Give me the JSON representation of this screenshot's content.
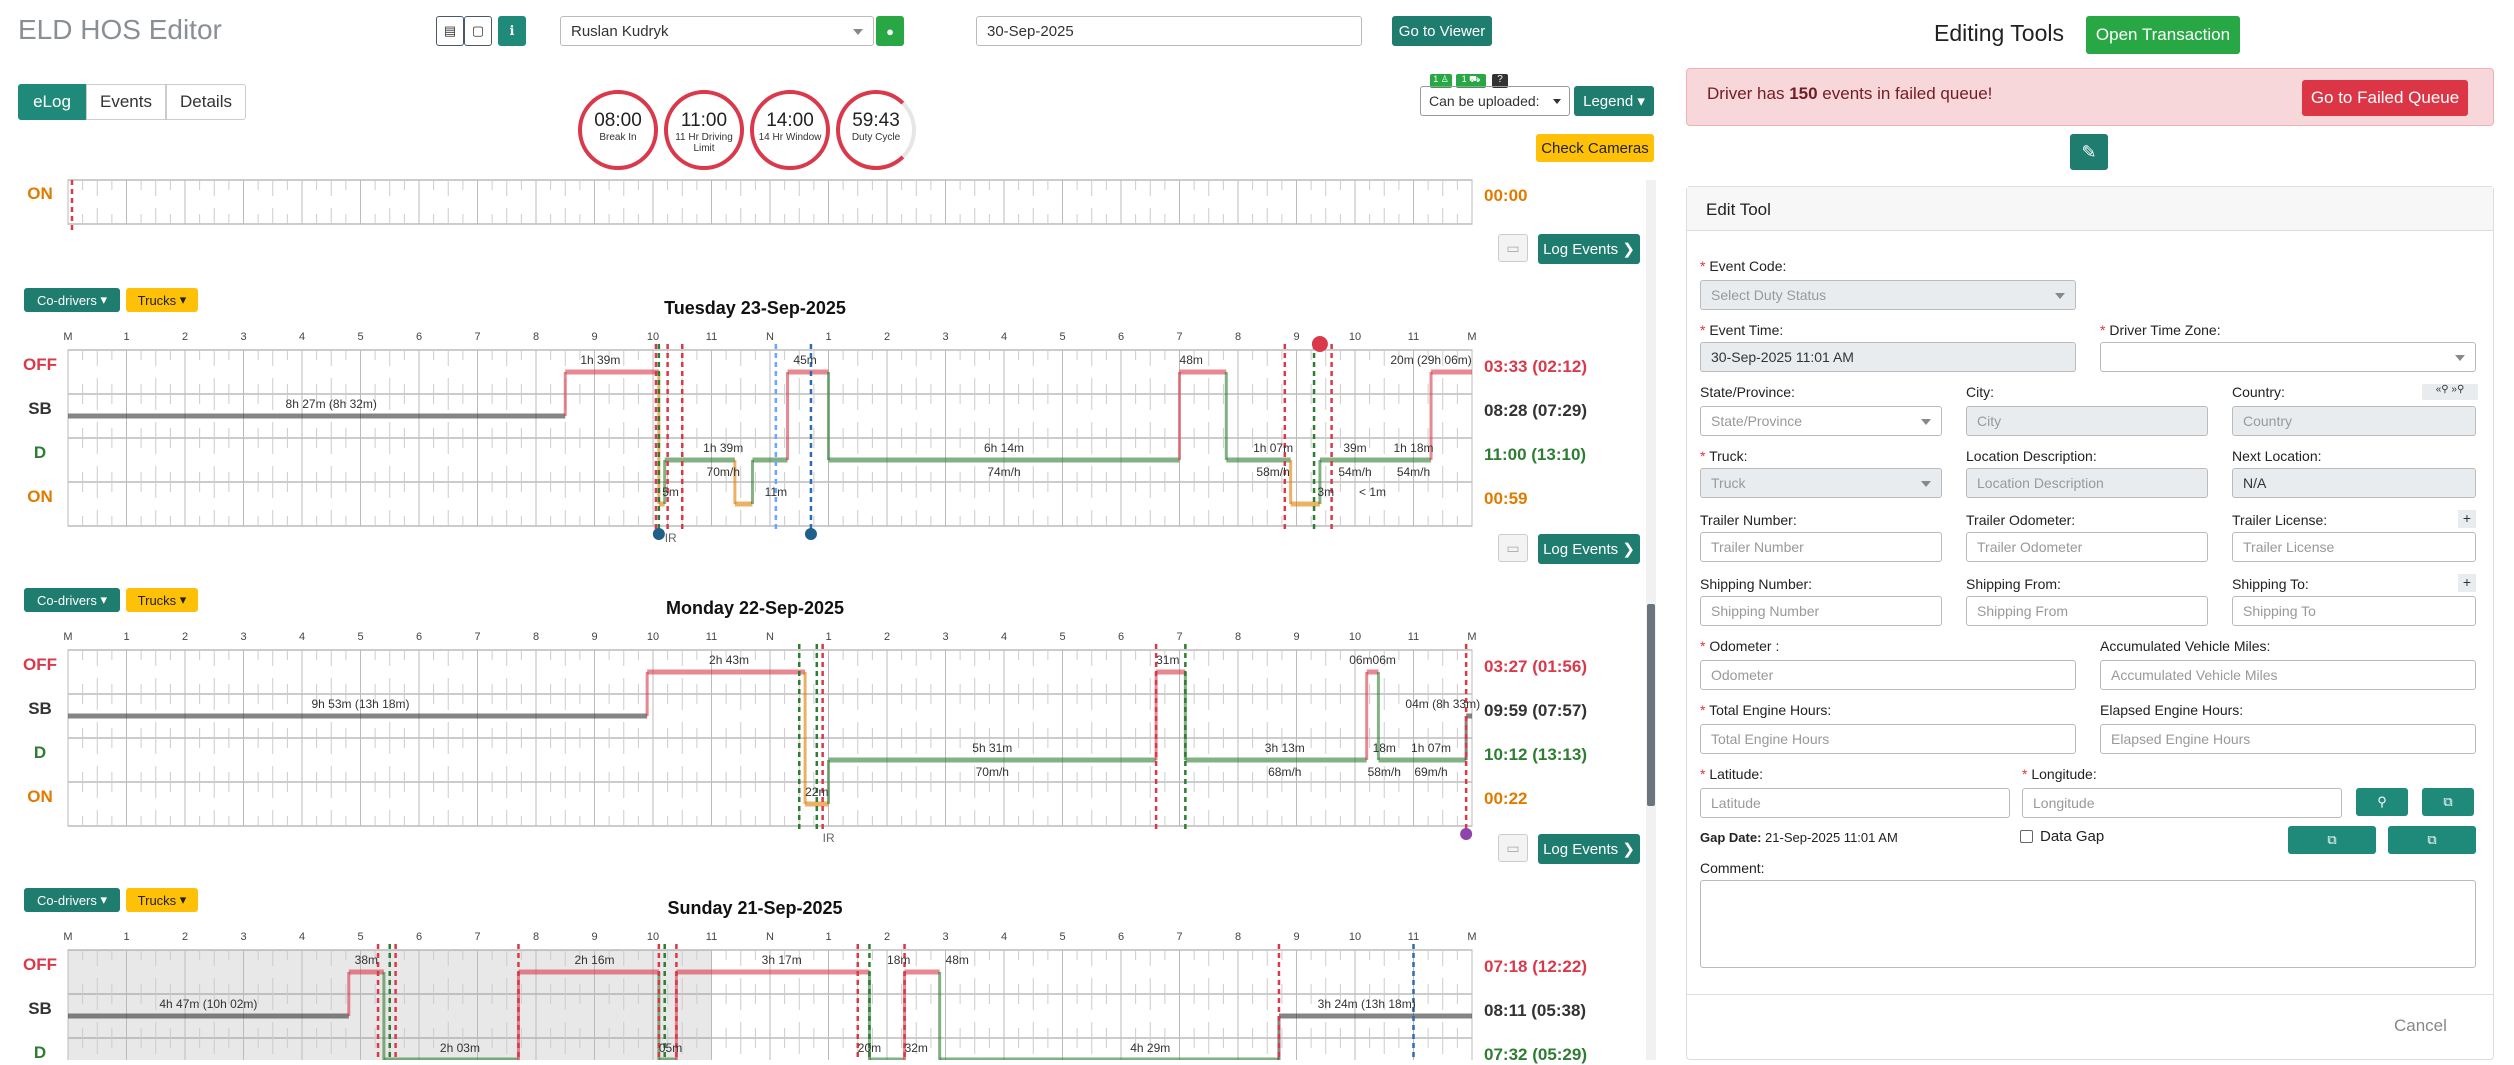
{
  "header": {
    "title": "ELD HOS Editor",
    "driver": "Ruslan Kudryk",
    "date": "30-Sep-2025",
    "go_to_viewer": "Go to Viewer"
  },
  "tabs": [
    "eLog",
    "Events",
    "Details"
  ],
  "gauges": [
    {
      "value": "08:00",
      "label": "Break In"
    },
    {
      "value": "11:00",
      "label": "11 Hr Driving Limit"
    },
    {
      "value": "14:00",
      "label": "14 Hr Window"
    },
    {
      "value": "59:43",
      "label": "Duty Cycle"
    }
  ],
  "upload": {
    "select": "Can be uploaded:",
    "legend": "Legend",
    "check_cameras": "Check Cameras",
    "badge_help": "?"
  },
  "common": {
    "log_events": "Log Events",
    "co_drivers": "Co-drivers",
    "trucks": "Trucks",
    "status_labels": [
      "OFF",
      "SB",
      "D",
      "ON"
    ],
    "hour_labels": [
      "M",
      "1",
      "2",
      "3",
      "4",
      "5",
      "6",
      "7",
      "8",
      "9",
      "10",
      "11",
      "N",
      "1",
      "2",
      "3",
      "4",
      "5",
      "6",
      "7",
      "8",
      "9",
      "10",
      "11",
      "M"
    ]
  },
  "top_partial": {
    "status": "ON",
    "total": "00:00"
  },
  "days": [
    {
      "title": "Tuesday 23-Sep-2025",
      "totals": [
        "03:33 (02:12)",
        "08:28 (07:29)",
        "11:00 (13:10)",
        "00:59"
      ],
      "marker": "IR",
      "labels": [
        {
          "t": "1h 39m",
          "h": 9.1,
          "r": 0
        },
        {
          "t": "45m",
          "h": 12.6,
          "r": 0
        },
        {
          "t": "48m",
          "h": 19.2,
          "r": 0
        },
        {
          "t": "20m (29h 06m)",
          "h": 23.3,
          "r": 0
        },
        {
          "t": "8h 27m (8h 32m)",
          "h": 4.5,
          "r": 1
        },
        {
          "t": "1h 39m",
          "h": 11.2,
          "r": 2
        },
        {
          "t": "6h 14m",
          "h": 16,
          "r": 2
        },
        {
          "t": "1h 07m",
          "h": 20.6,
          "r": 2
        },
        {
          "t": "39m",
          "h": 22,
          "r": 2
        },
        {
          "t": "1h 18m",
          "h": 23,
          "r": 2
        },
        {
          "t": "70m/h",
          "h": 11.2,
          "r": 2.55
        },
        {
          "t": "74m/h",
          "h": 16,
          "r": 2.55
        },
        {
          "t": "58m/h",
          "h": 20.6,
          "r": 2.55
        },
        {
          "t": "54m/h",
          "h": 22,
          "r": 2.55
        },
        {
          "t": "54m/h",
          "h": 23,
          "r": 2.55
        },
        {
          "t": "5m",
          "h": 10.3,
          "r": 3
        },
        {
          "t": "11m",
          "h": 12.1,
          "r": 3
        },
        {
          "t": "3m",
          "h": 21.5,
          "r": 3
        },
        {
          "t": "< 1m",
          "h": 22.3,
          "r": 3
        }
      ]
    },
    {
      "title": "Monday 22-Sep-2025",
      "totals": [
        "03:27 (01:56)",
        "09:59 (07:57)",
        "10:12 (13:13)",
        "00:22"
      ],
      "marker": "IR",
      "labels": [
        {
          "t": "2h 43m",
          "h": 11.3,
          "r": 0
        },
        {
          "t": "31m",
          "h": 18.8,
          "r": 0
        },
        {
          "t": "06m06m",
          "h": 22.3,
          "r": 0
        },
        {
          "t": "9h 53m (13h 18m)",
          "h": 5,
          "r": 1
        },
        {
          "t": "04m (8h 33m)",
          "h": 23.5,
          "r": 1
        },
        {
          "t": "5h 31m",
          "h": 15.8,
          "r": 2
        },
        {
          "t": "3h 13m",
          "h": 20.8,
          "r": 2
        },
        {
          "t": "18m",
          "h": 22.5,
          "r": 2
        },
        {
          "t": "1h 07m",
          "h": 23.3,
          "r": 2
        },
        {
          "t": "70m/h",
          "h": 15.8,
          "r": 2.55
        },
        {
          "t": "68m/h",
          "h": 20.8,
          "r": 2.55
        },
        {
          "t": "58m/h",
          "h": 22.5,
          "r": 2.55
        },
        {
          "t": "69m/h",
          "h": 23.3,
          "r": 2.55
        },
        {
          "t": "22m",
          "h": 12.8,
          "r": 3
        }
      ]
    },
    {
      "title": "Sunday 21-Sep-2025",
      "totals": [
        "07:18 (12:22)",
        "08:11 (05:38)",
        "07:32 (05:29)"
      ],
      "labels": [
        {
          "t": "38m",
          "h": 5.1,
          "r": 0
        },
        {
          "t": "2h 16m",
          "h": 9,
          "r": 0
        },
        {
          "t": "3h 17m",
          "h": 12.2,
          "r": 0
        },
        {
          "t": "18m",
          "h": 14.2,
          "r": 0
        },
        {
          "t": "48m",
          "h": 15.2,
          "r": 0
        },
        {
          "t": "4h 47m (10h 02m)",
          "h": 2.4,
          "r": 1
        },
        {
          "t": "3h 24m (13h 18m)",
          "h": 22.2,
          "r": 1
        },
        {
          "t": "2h 03m",
          "h": 6.7,
          "r": 2
        },
        {
          "t": "05m",
          "h": 10.3,
          "r": 2
        },
        {
          "t": "20m",
          "h": 13.7,
          "r": 2
        },
        {
          "t": "32m",
          "h": 14.5,
          "r": 2
        },
        {
          "t": "4h 29m",
          "h": 18.5,
          "r": 2
        }
      ]
    }
  ],
  "right": {
    "title": "Editing Tools",
    "open_transaction": "Open Transaction",
    "alert": {
      "prefix": "Driver has ",
      "count": "150",
      "suffix": " events in failed queue!",
      "button": "Go to Failed Queue"
    },
    "edit_tool": "Edit Tool",
    "fields": {
      "event_code": {
        "label": "Event Code:",
        "value": "Select Duty Status"
      },
      "event_time": {
        "label": "Event Time:",
        "value": "30-Sep-2025 11:01 AM"
      },
      "driver_tz": {
        "label": "Driver Time Zone:"
      },
      "state": {
        "label": "State/Province:",
        "placeholder": "State/Province"
      },
      "city": {
        "label": "City:",
        "placeholder": "City"
      },
      "country": {
        "label": "Country:",
        "placeholder": "Country"
      },
      "truck": {
        "label": "Truck:",
        "value": "Truck"
      },
      "location_desc": {
        "label": "Location Description:",
        "placeholder": "Location Description"
      },
      "next_location": {
        "label": "Next Location:",
        "value": "N/A"
      },
      "trailer_number": {
        "label": "Trailer Number:",
        "placeholder": "Trailer Number"
      },
      "trailer_odometer": {
        "label": "Trailer Odometer:",
        "placeholder": "Trailer Odometer"
      },
      "trailer_license": {
        "label": "Trailer License:",
        "placeholder": "Trailer License"
      },
      "shipping_number": {
        "label": "Shipping Number:",
        "placeholder": "Shipping Number"
      },
      "shipping_from": {
        "label": "Shipping From:",
        "placeholder": "Shipping From"
      },
      "shipping_to": {
        "label": "Shipping To:",
        "placeholder": "Shipping To"
      },
      "odometer": {
        "label": "Odometer :",
        "placeholder": "Odometer"
      },
      "acc_miles": {
        "label": "Accumulated Vehicle Miles:",
        "placeholder": "Accumulated Vehicle Miles"
      },
      "engine_hours": {
        "label": "Total Engine Hours:",
        "placeholder": "Total Engine Hours"
      },
      "elapsed_hours": {
        "label": "Elapsed Engine Hours:",
        "placeholder": "Elapsed Engine Hours"
      },
      "latitude": {
        "label": "Latitude:",
        "placeholder": "Latitude"
      },
      "longitude": {
        "label": "Longitude:",
        "placeholder": "Longitude"
      }
    },
    "gap_date_label": "Gap Date:",
    "gap_date_value": "21-Sep-2025 11:01 AM",
    "data_gap": "Data Gap",
    "comment": "Comment:",
    "cancel": "Cancel",
    "country_icons": "«⚲ »⚲"
  },
  "colors": {
    "off": "#d9394a",
    "sb": "#333333",
    "d": "#2e7d32",
    "on": "#e07b00",
    "teal": "#1f8a7a"
  }
}
